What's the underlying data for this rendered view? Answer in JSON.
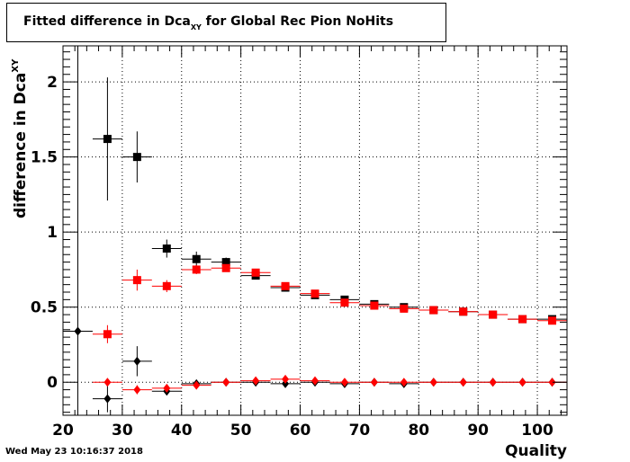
{
  "title": {
    "prefix": "Fitted difference in Dca",
    "sub": "XY",
    "suffix": " for Global Rec Pion NoHits"
  },
  "datestamp": "Wed May 23 10:16:37 2018",
  "colors": {
    "series_black": "#000000",
    "series_red": "#ff0000",
    "grid": "#000000",
    "frame": "#000000"
  },
  "chart_data": {
    "type": "scatter",
    "xlabel": "Quality",
    "ylabel_main": "difference in Dca",
    "ylabel_sub": "XY",
    "xlim": [
      20,
      105
    ],
    "ylim": [
      -0.22,
      2.24
    ],
    "xticks": [
      20,
      30,
      40,
      50,
      60,
      70,
      80,
      90,
      100
    ],
    "yticks": [
      0,
      0.5,
      1,
      1.5,
      2
    ],
    "ytick_labels": [
      "0",
      "0.5",
      "1",
      "1.5",
      "2"
    ],
    "grid": true,
    "series": [
      {
        "color": "#000000",
        "marker": "square",
        "points": [
          {
            "x": 27.5,
            "y": 1.62,
            "xerr": 2.5,
            "yerr": 0.41
          },
          {
            "x": 32.5,
            "y": 1.5,
            "xerr": 2.5,
            "yerr": 0.17
          },
          {
            "x": 37.5,
            "y": 0.89,
            "xerr": 2.5,
            "yerr": 0.06
          },
          {
            "x": 42.5,
            "y": 0.82,
            "xerr": 2.5,
            "yerr": 0.05
          },
          {
            "x": 47.5,
            "y": 0.8,
            "xerr": 2.5,
            "yerr": 0.03
          },
          {
            "x": 52.5,
            "y": 0.71,
            "xerr": 2.5,
            "yerr": 0.02
          },
          {
            "x": 57.5,
            "y": 0.63,
            "xerr": 2.5,
            "yerr": 0.02
          },
          {
            "x": 62.5,
            "y": 0.58,
            "xerr": 2.5,
            "yerr": 0.01
          },
          {
            "x": 67.5,
            "y": 0.55,
            "xerr": 2.5,
            "yerr": 0.01
          },
          {
            "x": 72.5,
            "y": 0.52,
            "xerr": 2.5,
            "yerr": 0.01
          },
          {
            "x": 77.5,
            "y": 0.5,
            "xerr": 2.5,
            "yerr": 0.01
          },
          {
            "x": 82.5,
            "y": 0.48,
            "xerr": 2.5,
            "yerr": 0.01
          },
          {
            "x": 87.5,
            "y": 0.47,
            "xerr": 2.5,
            "yerr": 0.01
          },
          {
            "x": 92.5,
            "y": 0.45,
            "xerr": 2.5,
            "yerr": 0.01
          },
          {
            "x": 97.5,
            "y": 0.42,
            "xerr": 2.5,
            "yerr": 0.01
          },
          {
            "x": 102.5,
            "y": 0.42,
            "xerr": 2.5,
            "yerr": 0.01
          }
        ]
      },
      {
        "color": "#ff0000",
        "marker": "square",
        "points": [
          {
            "x": 27.5,
            "y": 0.32,
            "xerr": 2.5,
            "yerr": 0.06
          },
          {
            "x": 32.5,
            "y": 0.68,
            "xerr": 2.5,
            "yerr": 0.07
          },
          {
            "x": 37.5,
            "y": 0.64,
            "xerr": 2.5,
            "yerr": 0.04
          },
          {
            "x": 42.5,
            "y": 0.75,
            "xerr": 2.5,
            "yerr": 0.03
          },
          {
            "x": 47.5,
            "y": 0.76,
            "xerr": 2.5,
            "yerr": 0.02
          },
          {
            "x": 52.5,
            "y": 0.73,
            "xerr": 2.5,
            "yerr": 0.02
          },
          {
            "x": 57.5,
            "y": 0.64,
            "xerr": 2.5,
            "yerr": 0.01
          },
          {
            "x": 62.5,
            "y": 0.59,
            "xerr": 2.5,
            "yerr": 0.01
          },
          {
            "x": 67.5,
            "y": 0.53,
            "xerr": 2.5,
            "yerr": 0.01
          },
          {
            "x": 72.5,
            "y": 0.51,
            "xerr": 2.5,
            "yerr": 0.01
          },
          {
            "x": 77.5,
            "y": 0.49,
            "xerr": 2.5,
            "yerr": 0.01
          },
          {
            "x": 82.5,
            "y": 0.48,
            "xerr": 2.5,
            "yerr": 0.01
          },
          {
            "x": 87.5,
            "y": 0.47,
            "xerr": 2.5,
            "yerr": 0.01
          },
          {
            "x": 92.5,
            "y": 0.45,
            "xerr": 2.5,
            "yerr": 0.01
          },
          {
            "x": 97.5,
            "y": 0.42,
            "xerr": 2.5,
            "yerr": 0.01
          },
          {
            "x": 102.5,
            "y": 0.41,
            "xerr": 2.5,
            "yerr": 0.01
          }
        ]
      },
      {
        "color": "#000000",
        "marker": "diamond",
        "points": [
          {
            "x": 22.5,
            "y": 0.34,
            "xerr": 2.5,
            "yerr": 1.95
          },
          {
            "x": 27.5,
            "y": -0.11,
            "xerr": 2.5,
            "yerr": 0.09
          },
          {
            "x": 32.5,
            "y": 0.14,
            "xerr": 2.5,
            "yerr": 0.1
          },
          {
            "x": 37.5,
            "y": -0.06,
            "xerr": 2.5,
            "yerr": 0.02
          },
          {
            "x": 42.5,
            "y": -0.01,
            "xerr": 2.5,
            "yerr": 0.02
          },
          {
            "x": 47.5,
            "y": 0.0,
            "xerr": 2.5,
            "yerr": 0.01
          },
          {
            "x": 52.5,
            "y": 0.0,
            "xerr": 2.5,
            "yerr": 0.01
          },
          {
            "x": 57.5,
            "y": -0.01,
            "xerr": 2.5,
            "yerr": 0.01
          },
          {
            "x": 62.5,
            "y": 0.0,
            "xerr": 2.5,
            "yerr": 0.01
          },
          {
            "x": 67.5,
            "y": -0.01,
            "xerr": 2.5,
            "yerr": 0.01
          },
          {
            "x": 72.5,
            "y": 0.0,
            "xerr": 2.5,
            "yerr": 0.01
          },
          {
            "x": 77.5,
            "y": -0.01,
            "xerr": 2.5,
            "yerr": 0.01
          },
          {
            "x": 82.5,
            "y": 0.0,
            "xerr": 2.5,
            "yerr": 0.01
          },
          {
            "x": 87.5,
            "y": 0.0,
            "xerr": 2.5,
            "yerr": 0.01
          },
          {
            "x": 92.5,
            "y": 0.0,
            "xerr": 2.5,
            "yerr": 0.01
          },
          {
            "x": 97.5,
            "y": 0.0,
            "xerr": 2.5,
            "yerr": 0.01
          },
          {
            "x": 102.5,
            "y": 0.0,
            "xerr": 2.5,
            "yerr": 0.01
          }
        ]
      },
      {
        "color": "#ff0000",
        "marker": "diamond",
        "points": [
          {
            "x": 27.5,
            "y": 0.0,
            "xerr": 2.5,
            "yerr": 0.02
          },
          {
            "x": 32.5,
            "y": -0.05,
            "xerr": 2.5,
            "yerr": 0.03
          },
          {
            "x": 37.5,
            "y": -0.04,
            "xerr": 2.5,
            "yerr": 0.02
          },
          {
            "x": 42.5,
            "y": -0.02,
            "xerr": 2.5,
            "yerr": 0.01
          },
          {
            "x": 47.5,
            "y": 0.0,
            "xerr": 2.5,
            "yerr": 0.01
          },
          {
            "x": 52.5,
            "y": 0.01,
            "xerr": 2.5,
            "yerr": 0.01
          },
          {
            "x": 57.5,
            "y": 0.02,
            "xerr": 2.5,
            "yerr": 0.01
          },
          {
            "x": 62.5,
            "y": 0.01,
            "xerr": 2.5,
            "yerr": 0.01
          },
          {
            "x": 67.5,
            "y": 0.0,
            "xerr": 2.5,
            "yerr": 0.01
          },
          {
            "x": 72.5,
            "y": 0.0,
            "xerr": 2.5,
            "yerr": 0.01
          },
          {
            "x": 77.5,
            "y": 0.0,
            "xerr": 2.5,
            "yerr": 0.01
          },
          {
            "x": 82.5,
            "y": 0.0,
            "xerr": 2.5,
            "yerr": 0.01
          },
          {
            "x": 87.5,
            "y": 0.0,
            "xerr": 2.5,
            "yerr": 0.01
          },
          {
            "x": 92.5,
            "y": 0.0,
            "xerr": 2.5,
            "yerr": 0.01
          },
          {
            "x": 97.5,
            "y": 0.0,
            "xerr": 2.5,
            "yerr": 0.01
          },
          {
            "x": 102.5,
            "y": 0.0,
            "xerr": 2.5,
            "yerr": 0.01
          }
        ]
      }
    ]
  }
}
